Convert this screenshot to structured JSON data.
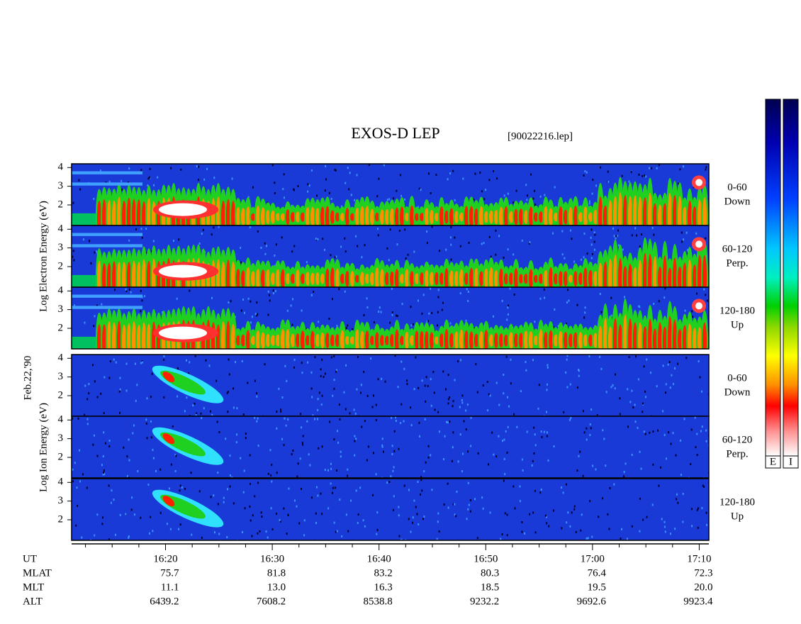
{
  "chart_data": {
    "type": "spectrogram",
    "title": "EXOS-D LEP",
    "file": "[90022216.lep]",
    "date": "Feb.22,'90",
    "groups": [
      {
        "ylabel": "Log Electron Energy (eV)",
        "panels": [
          {
            "pitch": "0-60",
            "direction": "Down"
          },
          {
            "pitch": "60-120",
            "direction": "Perp."
          },
          {
            "pitch": "120-180",
            "direction": "Up"
          }
        ]
      },
      {
        "ylabel": "Log Ion Energy (eV)",
        "panels": [
          {
            "pitch": "0-60",
            "direction": "Down"
          },
          {
            "pitch": "60-120",
            "direction": "Perp."
          },
          {
            "pitch": "120-180",
            "direction": "Up"
          }
        ]
      }
    ],
    "ylim": [
      0.9,
      4.2
    ],
    "yticks": [
      2,
      3,
      4
    ],
    "xlabel": "UT",
    "xlim": [
      971.2,
      1030.9
    ],
    "xticks": [
      {
        "value": 980,
        "label": "16:20"
      },
      {
        "value": 990,
        "label": "16:30"
      },
      {
        "value": 1000,
        "label": "16:40"
      },
      {
        "value": 1010,
        "label": "16:50"
      },
      {
        "value": 1020,
        "label": "17:00"
      },
      {
        "value": 1030,
        "label": "17:10"
      }
    ],
    "minor_xticks": [
      972.5,
      975,
      977.5,
      982.5,
      985,
      987.5,
      992.5,
      995,
      997.5,
      1002.5,
      1005,
      1007.5,
      1012.5,
      1015,
      1017.5,
      1022.5,
      1025,
      1027.5
    ],
    "footer_rows": [
      {
        "label": "MLAT",
        "values": [
          "75.7",
          "81.8",
          "83.2",
          "80.3",
          "76.4",
          "72.3"
        ]
      },
      {
        "label": "MLT",
        "values": [
          "11.1",
          "13.0",
          "16.3",
          "18.5",
          "19.5",
          "20.0"
        ]
      },
      {
        "label": "ALT",
        "values": [
          "6439.2",
          "7608.2",
          "8538.8",
          "9232.2",
          "9692.6",
          "9923.4"
        ]
      }
    ],
    "colorbars": [
      {
        "label": "E"
      },
      {
        "label": "I"
      }
    ]
  }
}
